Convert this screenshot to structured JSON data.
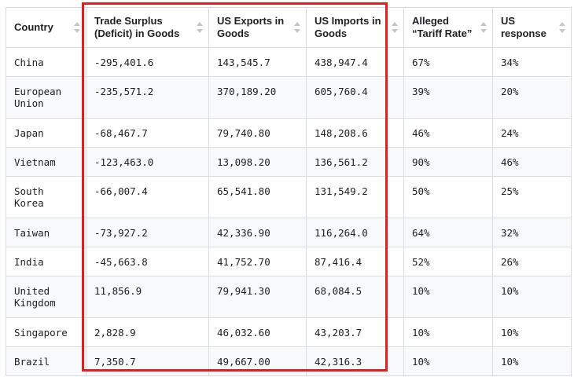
{
  "table": {
    "columns": [
      "Country",
      "Trade Surplus (Deficit) in Goods",
      "US Exports in Goods",
      "US Imports in Goods",
      "Alleged “Tariff Rate”",
      "US response"
    ],
    "rows": [
      [
        "China",
        "-295,401.6",
        "143,545.7",
        "438,947.4",
        "67%",
        "34%"
      ],
      [
        "European Union",
        "-235,571.2",
        "370,189.20",
        "605,760.4",
        "39%",
        "20%"
      ],
      [
        "Japan",
        "-68,467.7",
        "79,740.80",
        "148,208.6",
        "46%",
        "24%"
      ],
      [
        "Vietnam",
        "-123,463.0",
        "13,098.20",
        "136,561.2",
        "90%",
        "46%"
      ],
      [
        "South Korea",
        "-66,007.4",
        "65,541.80",
        "131,549.2",
        "50%",
        "25%"
      ],
      [
        "Taiwan",
        "-73,927.2",
        "42,336.90",
        "116,264.0",
        "64%",
        "32%"
      ],
      [
        "India",
        "-45,663.8",
        "41,752.70",
        "87,416.4",
        "52%",
        "26%"
      ],
      [
        "United Kingdom",
        "11,856.9",
        "79,941.30",
        "68,084.5",
        "10%",
        "10%"
      ],
      [
        "Singapore",
        "2,828.9",
        "46,032.60",
        "43,203.7",
        "10%",
        "10%"
      ],
      [
        "Brazil",
        "7,350.7",
        "49,667.00",
        "42,316.3",
        "10%",
        "10%"
      ]
    ]
  },
  "highlight": {
    "columns": [
      "Trade Surplus (Deficit) in Goods",
      "US Exports in Goods",
      "US Imports in Goods"
    ],
    "color": "#e02020"
  },
  "icons": {
    "sort": "sort-icon"
  },
  "colors": {
    "border": "#dadce0",
    "row_alt": "#f8f9fa",
    "text": "#202124",
    "sort_icon": "#c4c7c5"
  }
}
